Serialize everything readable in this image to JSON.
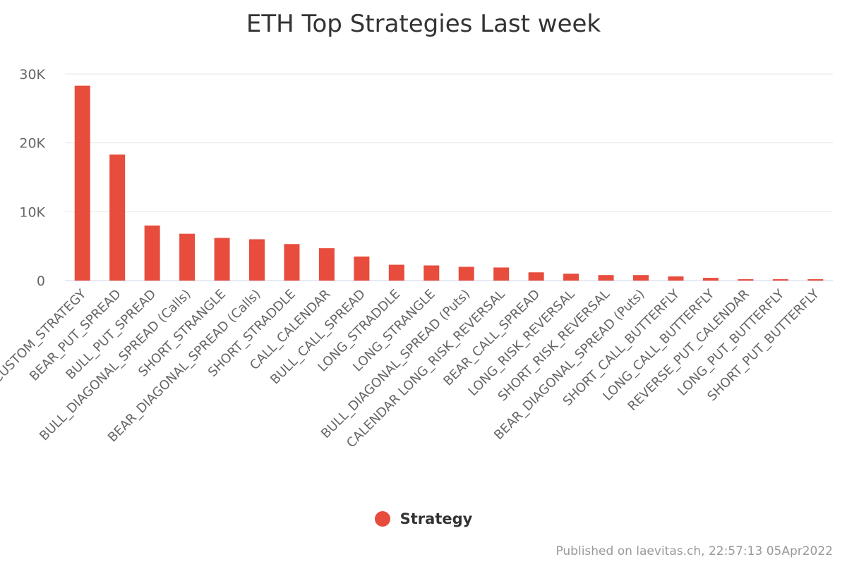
{
  "chart_data": {
    "type": "bar",
    "title": "ETH Top Strategies Last week",
    "xlabel": "",
    "ylabel": "",
    "ylim": [
      0,
      30000
    ],
    "yticks": [
      0,
      10000,
      20000,
      30000
    ],
    "ytick_labels": [
      "0",
      "10K",
      "20K",
      "30K"
    ],
    "grid": true,
    "legend_position": "bottom-center",
    "categories": [
      "CUSTOM_STRATEGY",
      "BEAR_PUT_SPREAD",
      "BULL_PUT_SPREAD",
      "BULL_DIAGONAL_SPREAD (Calls)",
      "SHORT_STRANGLE",
      "BEAR_DIAGONAL_SPREAD (Calls)",
      "SHORT_STRADDLE",
      "CALL_CALENDAR",
      "BULL_CALL_SPREAD",
      "LONG_STRADDLE",
      "LONG_STRANGLE",
      "BULL_DIAGONAL_SPREAD (Puts)",
      "CALENDAR LONG_RISK_REVERSAL",
      "BEAR_CALL_SPREAD",
      "LONG_RISK_REVERSAL",
      "SHORT_RISK_REVERSAL",
      "BEAR_DIAGONAL_SPREAD (Puts)",
      "SHORT_CALL_BUTTERFLY",
      "LONG_CALL_BUTTERFLY",
      "REVERSE_PUT_CALENDAR",
      "LONG_PUT_BUTTERFLY",
      "SHORT_PUT_BUTTERFLY"
    ],
    "series": [
      {
        "name": "Strategy",
        "color": "#e74c3c",
        "values": [
          28300,
          18300,
          8000,
          6800,
          6200,
          6000,
          5300,
          4700,
          3500,
          2300,
          2200,
          2000,
          1900,
          1200,
          1000,
          800,
          800,
          600,
          400,
          200,
          200,
          200
        ]
      }
    ]
  },
  "legend": {
    "label": "Strategy"
  },
  "credit": "Published on laevitas.ch, 22:57:13 05Apr2022"
}
